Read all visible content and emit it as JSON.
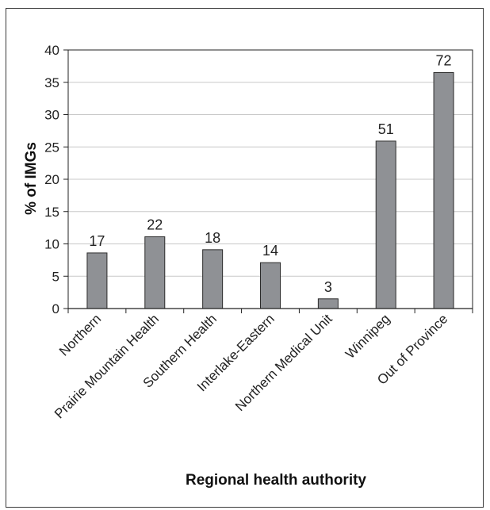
{
  "chart_data": {
    "type": "bar",
    "title": "",
    "xlabel": "Regional health authority",
    "ylabel": "% of IMGs",
    "ylim": [
      0,
      40
    ],
    "yticks": [
      0,
      5,
      10,
      15,
      20,
      25,
      30,
      35,
      40
    ],
    "categories": [
      "Northern",
      "Prairie Mountain Health",
      "Southern Health",
      "Interlake-Eastern",
      "Northern Medical Unit",
      "Winnipeg",
      "Out of Province"
    ],
    "values": [
      8.6,
      11.1,
      9.1,
      7.1,
      1.5,
      25.9,
      36.5
    ],
    "data_labels": [
      "17",
      "22",
      "18",
      "14",
      "3",
      "51",
      "72"
    ],
    "grid": true,
    "legend": "none",
    "colors": {
      "bar": "#8f9195",
      "bar_stroke": "#2b2b2b",
      "grid": "#c8c8c8",
      "axis": "#222222"
    }
  }
}
